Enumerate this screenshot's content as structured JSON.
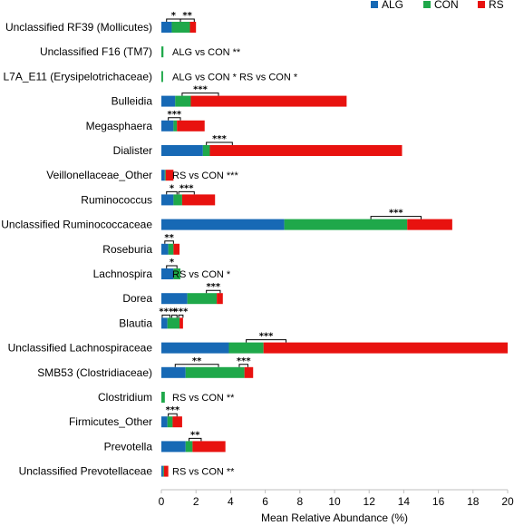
{
  "chart_data": {
    "type": "bar",
    "stacked": true,
    "orientation": "horizontal",
    "xlabel": "Mean Relative Abundance (%)",
    "xlim": [
      0,
      20
    ],
    "xticks": [
      "0",
      "2",
      "4",
      "6",
      "8",
      "10",
      "12",
      "14",
      "16",
      "18",
      "20"
    ],
    "legend_position": "top-right",
    "series": [
      {
        "name": "ALG",
        "color": "#1769B5"
      },
      {
        "name": "CON",
        "color": "#1FA84A"
      },
      {
        "name": "RS",
        "color": "#E8120F"
      }
    ],
    "categories": [
      "Unclassified RF39 (Mollicutes)",
      "Unclassified F16 (TM7)",
      "L7A_E11 (Erysipelotrichaceae)",
      "Bulleidia",
      "Megasphaera",
      "Dialister",
      "Veillonellaceae_Other",
      "Ruminococcus",
      "Unclassified Ruminococcaceae",
      "Roseburia",
      "Lachnospira",
      "Dorea",
      "Blautia",
      "Unclassified Lachnospiraceae",
      "SMB53 (Clostridiaceae)",
      "Clostridium",
      "Firmicutes_Other",
      "Prevotella",
      "Unclassified Prevotellaceae"
    ],
    "values": {
      "ALG": [
        0.6,
        0.0,
        0.0,
        0.8,
        0.7,
        2.4,
        0.2,
        0.7,
        7.1,
        0.4,
        0.7,
        1.5,
        0.35,
        3.9,
        1.4,
        0.0,
        0.35,
        1.4,
        0.1
      ],
      "CON": [
        1.05,
        0.12,
        0.1,
        0.9,
        0.2,
        0.4,
        0.05,
        0.5,
        7.1,
        0.3,
        0.4,
        1.7,
        0.7,
        2.0,
        3.4,
        0.2,
        0.3,
        0.4,
        0.05
      ],
      "RS": [
        0.35,
        0.0,
        0.0,
        9.0,
        1.6,
        11.1,
        0.45,
        1.9,
        2.6,
        0.35,
        0.0,
        0.35,
        0.2,
        14.1,
        0.5,
        0.0,
        0.55,
        1.9,
        0.25
      ]
    },
    "notes": [
      {
        "row": 1,
        "text": "ALG vs CON **"
      },
      {
        "row": 2,
        "text": "ALG vs CON *   RS vs CON *"
      },
      {
        "row": 6,
        "text": "RS vs CON ***"
      },
      {
        "row": 10,
        "text": "RS vs CON *"
      },
      {
        "row": 15,
        "text": "RS vs CON **"
      },
      {
        "row": 18,
        "text": "RS vs CON **"
      }
    ],
    "significance": [
      {
        "row": 0,
        "from": 0.3,
        "to": 1.1,
        "text": "*"
      },
      {
        "row": 0,
        "from": 1.1,
        "to": 1.9,
        "text": "**"
      },
      {
        "row": 3,
        "from": 1.2,
        "to": 3.3,
        "text": "***"
      },
      {
        "row": 4,
        "from": 0.4,
        "to": 1.1,
        "text": "***"
      },
      {
        "row": 5,
        "from": 2.6,
        "to": 4.1,
        "text": "***"
      },
      {
        "row": 7,
        "from": 0.3,
        "to": 0.9,
        "text": "*"
      },
      {
        "row": 7,
        "from": 1.0,
        "to": 1.9,
        "text": "***"
      },
      {
        "row": 8,
        "from": 12.1,
        "to": 15.0,
        "text": "***"
      },
      {
        "row": 9,
        "from": 0.2,
        "to": 0.7,
        "text": "**"
      },
      {
        "row": 10,
        "from": 0.3,
        "to": 0.9,
        "text": "*"
      },
      {
        "row": 11,
        "from": 2.6,
        "to": 3.4,
        "text": "***"
      },
      {
        "row": 12,
        "from": 0.05,
        "to": 0.5,
        "text": "***"
      },
      {
        "row": 12,
        "from": 0.6,
        "to": 0.9,
        "text": "*"
      },
      {
        "row": 12,
        "from": 1.0,
        "to": 1.25,
        "text": "***"
      },
      {
        "row": 13,
        "from": 4.9,
        "to": 7.2,
        "text": "***"
      },
      {
        "row": 14,
        "from": 0.8,
        "to": 3.3,
        "text": "**"
      },
      {
        "row": 14,
        "from": 4.5,
        "to": 5.0,
        "text": "***"
      },
      {
        "row": 16,
        "from": 0.4,
        "to": 0.9,
        "text": "***"
      },
      {
        "row": 17,
        "from": 1.6,
        "to": 2.3,
        "text": "**"
      }
    ]
  }
}
